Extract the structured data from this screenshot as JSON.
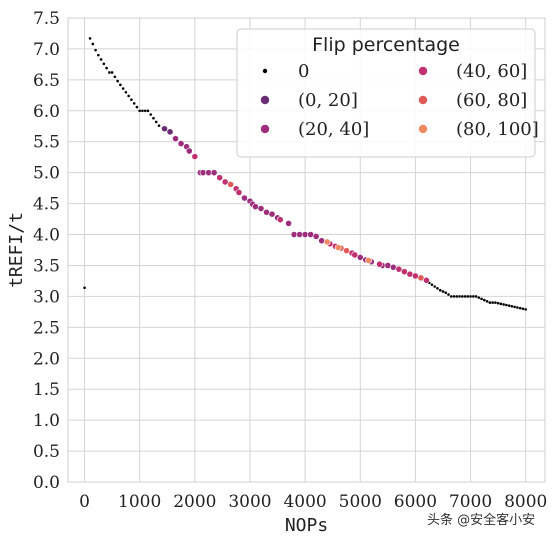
{
  "chart_data": {
    "type": "scatter",
    "xlabel": "NOPs",
    "ylabel": "tREFI/t",
    "xlim": [
      -300,
      8350
    ],
    "ylim": [
      0,
      7.5
    ],
    "xticks": [
      0,
      1000,
      2000,
      3000,
      4000,
      5000,
      6000,
      7000,
      8000
    ],
    "yticks": [
      0.0,
      0.5,
      1.0,
      1.5,
      2.0,
      2.5,
      3.0,
      3.5,
      4.0,
      4.5,
      5.0,
      5.5,
      6.0,
      6.5,
      7.0,
      7.5
    ],
    "grid": true,
    "legend": {
      "title": "Flip percentage",
      "placement": "top-right",
      "entries": [
        "0",
        "(0, 20]",
        "(20, 40]",
        "(40, 60]",
        "(60, 80]",
        "(80, 100]"
      ]
    },
    "series": [
      {
        "name": "0",
        "color": "#000000",
        "marker": "small",
        "points": [
          [
            0,
            3.14
          ],
          [
            100,
            7.17
          ],
          [
            150,
            7.08
          ],
          [
            200,
            6.98
          ],
          [
            250,
            6.9
          ],
          [
            300,
            6.83
          ],
          [
            350,
            6.76
          ],
          [
            400,
            6.69
          ],
          [
            450,
            6.62
          ],
          [
            500,
            6.62
          ],
          [
            550,
            6.55
          ],
          [
            600,
            6.48
          ],
          [
            650,
            6.42
          ],
          [
            700,
            6.36
          ],
          [
            750,
            6.3
          ],
          [
            800,
            6.24
          ],
          [
            850,
            6.18
          ],
          [
            900,
            6.12
          ],
          [
            950,
            6.06
          ],
          [
            1000,
            6.0
          ],
          [
            1050,
            6.0
          ],
          [
            1100,
            6.0
          ],
          [
            1150,
            6.0
          ],
          [
            1200,
            5.94
          ],
          [
            1250,
            5.88
          ],
          [
            1300,
            5.82
          ],
          [
            1350,
            5.76
          ],
          [
            6250,
            3.22
          ],
          [
            6300,
            3.19
          ],
          [
            6350,
            3.16
          ],
          [
            6400,
            3.13
          ],
          [
            6450,
            3.1
          ],
          [
            6500,
            3.08
          ],
          [
            6550,
            3.06
          ],
          [
            6600,
            3.03
          ],
          [
            6650,
            3.0
          ],
          [
            6700,
            3.0
          ],
          [
            6750,
            3.0
          ],
          [
            6800,
            3.0
          ],
          [
            6850,
            3.0
          ],
          [
            6900,
            3.0
          ],
          [
            6950,
            3.0
          ],
          [
            7000,
            3.0
          ],
          [
            7050,
            3.0
          ],
          [
            7100,
            3.0
          ],
          [
            7150,
            2.98
          ],
          [
            7200,
            2.96
          ],
          [
            7250,
            2.94
          ],
          [
            7300,
            2.92
          ],
          [
            7350,
            2.9
          ],
          [
            7400,
            2.9
          ],
          [
            7450,
            2.9
          ],
          [
            7500,
            2.89
          ],
          [
            7550,
            2.88
          ],
          [
            7600,
            2.87
          ],
          [
            7650,
            2.86
          ],
          [
            7700,
            2.85
          ],
          [
            7750,
            2.84
          ],
          [
            7800,
            2.83
          ],
          [
            7850,
            2.82
          ],
          [
            7900,
            2.81
          ],
          [
            7950,
            2.8
          ],
          [
            8000,
            2.79
          ]
        ]
      },
      {
        "name": "(0, 20]",
        "color": "#6b2c76",
        "points": [
          [
            1450,
            5.71
          ],
          [
            1550,
            5.66
          ]
        ]
      },
      {
        "name": "(20, 40]",
        "color": "#9c2e7c",
        "points": [
          [
            1650,
            5.55
          ],
          [
            1750,
            5.47
          ],
          [
            1850,
            5.42
          ],
          [
            1900,
            5.35
          ],
          [
            2100,
            5.0
          ],
          [
            2150,
            5.0
          ],
          [
            2250,
            5.0
          ],
          [
            2350,
            5.0
          ],
          [
            2900,
            4.59
          ],
          [
            3000,
            4.54
          ],
          [
            3050,
            4.49
          ],
          [
            3100,
            4.45
          ],
          [
            3200,
            4.42
          ],
          [
            3300,
            4.36
          ],
          [
            3400,
            4.33
          ],
          [
            3500,
            4.27
          ],
          [
            3700,
            4.18
          ],
          [
            3800,
            4.0
          ],
          [
            3900,
            4.0
          ],
          [
            4000,
            4.0
          ],
          [
            4100,
            4.0
          ],
          [
            4200,
            3.97
          ],
          [
            4300,
            3.9
          ],
          [
            5000,
            3.63
          ],
          [
            5100,
            3.59
          ],
          [
            5200,
            3.56
          ],
          [
            5400,
            3.5
          ],
          [
            5500,
            3.5
          ],
          [
            5600,
            3.47
          ]
        ]
      },
      {
        "name": "(40, 60]",
        "color": "#c1306f",
        "points": [
          [
            2000,
            5.26
          ],
          [
            2450,
            4.92
          ],
          [
            2550,
            4.85
          ],
          [
            2750,
            4.74
          ],
          [
            2800,
            4.68
          ],
          [
            3550,
            4.24
          ],
          [
            4450,
            3.85
          ],
          [
            4550,
            3.81
          ],
          [
            4850,
            3.7
          ],
          [
            4900,
            3.67
          ],
          [
            5350,
            3.52
          ],
          [
            5700,
            3.44
          ],
          [
            5800,
            3.4
          ],
          [
            5900,
            3.36
          ],
          [
            6000,
            3.33
          ],
          [
            6200,
            3.26
          ]
        ]
      },
      {
        "name": "(60, 80]",
        "color": "#e05b58",
        "points": [
          [
            2650,
            4.81
          ],
          [
            4650,
            3.78
          ],
          [
            4750,
            3.74
          ],
          [
            6100,
            3.3
          ]
        ]
      },
      {
        "name": "(80, 100]",
        "color": "#ef8a62",
        "points": [
          [
            4400,
            3.88
          ],
          [
            4600,
            3.79
          ],
          [
            5150,
            3.58
          ]
        ]
      }
    ]
  },
  "watermark": "头条 @安全客小安"
}
